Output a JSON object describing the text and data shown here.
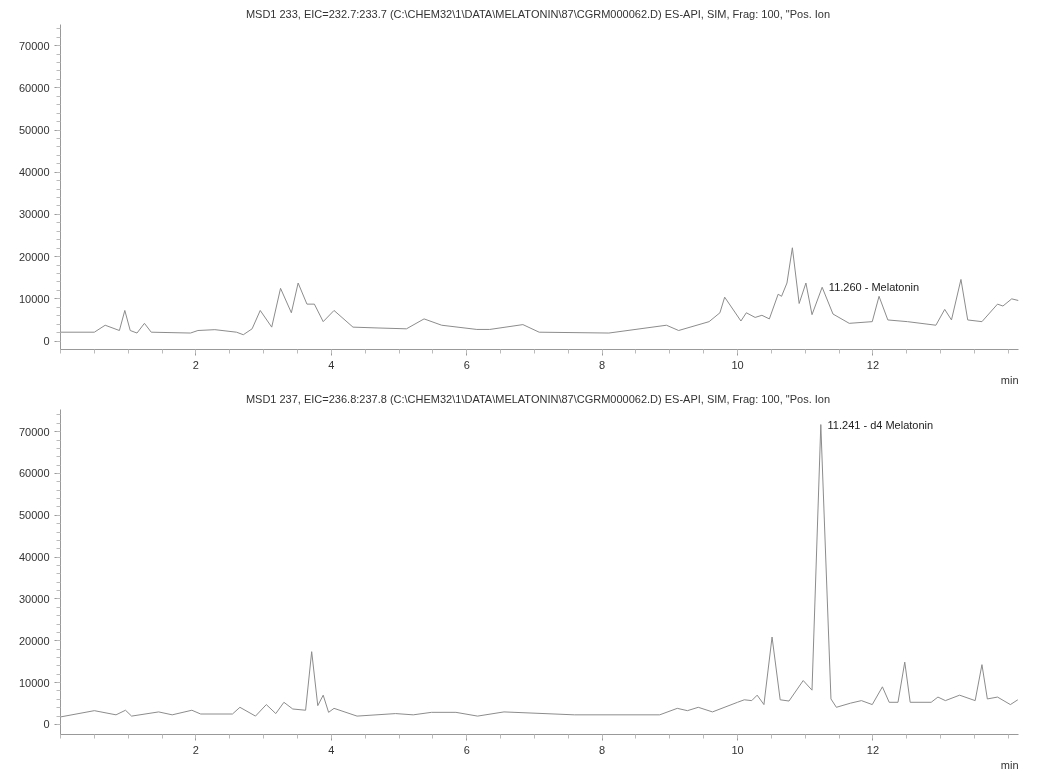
{
  "chart_data": [
    {
      "type": "line",
      "title": "MSD1 233, EIC=232.7:233.7 (C:\\CHEM32\\1\\DATA\\MELATONIN\\87\\CGRM000062.D)  ES-API, SIM, Frag: 100, \"Pos. Ion",
      "xlabel": "min",
      "xlim": [
        0,
        14.15
      ],
      "ylim": [
        -2000,
        75000
      ],
      "xticks": [
        2,
        4,
        6,
        8,
        10,
        12
      ],
      "yticks": [
        0,
        10000,
        20000,
        30000,
        40000,
        50000,
        60000,
        70000
      ],
      "annotations": [
        {
          "text": "11.260 -  Melatonin",
          "x": 11.26,
          "y": 12750
        }
      ],
      "series": [
        {
          "color": "#8c8c8c",
          "x": [
            0,
            0.5,
            0.66,
            0.87,
            0.95,
            1.03,
            1.13,
            1.24,
            1.34,
            1.92,
            2.03,
            2.28,
            2.6,
            2.7,
            2.83,
            2.95,
            3.12,
            3.25,
            3.41,
            3.51,
            3.64,
            3.75,
            3.88,
            4.04,
            4.32,
            4.69,
            5.11,
            5.37,
            5.63,
            6.15,
            6.34,
            6.83,
            7.07,
            8.1,
            8.95,
            9.13,
            9.58,
            9.74,
            9.81,
            10.05,
            10.13,
            10.26,
            10.36,
            10.47,
            10.6,
            10.65,
            10.73,
            10.81,
            10.91,
            11.01,
            11.1,
            11.25,
            11.41,
            11.65,
            11.99,
            12.09,
            12.22,
            12.51,
            12.93,
            13.06,
            13.16,
            13.3,
            13.4,
            13.61,
            13.84,
            13.92,
            14.05,
            14.15
          ],
          "values": [
            2100,
            2100,
            3750,
            2500,
            7250,
            2500,
            1900,
            4200,
            2100,
            1900,
            2500,
            2700,
            2100,
            1500,
            2900,
            7250,
            3300,
            12500,
            6700,
            13750,
            8750,
            8750,
            4600,
            7250,
            3300,
            3100,
            2900,
            5250,
            3750,
            2750,
            2750,
            3900,
            2100,
            1900,
            3750,
            2500,
            4600,
            6700,
            10400,
            4750,
            6700,
            5600,
            6100,
            5250,
            11100,
            10600,
            13750,
            22100,
            8900,
            13750,
            6250,
            12750,
            6400,
            4200,
            4600,
            10600,
            5000,
            4600,
            3750,
            7500,
            5000,
            14600,
            5000,
            4600,
            8750,
            8300,
            10000,
            9600
          ]
        }
      ]
    },
    {
      "type": "line",
      "title": "MSD1 237, EIC=236.8:237.8 (C:\\CHEM32\\1\\DATA\\MELATONIN\\87\\CGRM000062.D)  ES-API, SIM, Frag: 100, \"Pos. Ion",
      "xlabel": "min",
      "xlim": [
        0,
        14.15
      ],
      "ylim": [
        -2400,
        75300
      ],
      "xticks": [
        2,
        4,
        6,
        8,
        10,
        12
      ],
      "yticks": [
        0,
        10000,
        20000,
        30000,
        40000,
        50000,
        60000,
        70000
      ],
      "annotations": [
        {
          "text": "11.241 -  d4 Melatonin",
          "x": 11.241,
          "y": 71700
        }
      ],
      "series": [
        {
          "color": "#8c8c8c",
          "x": [
            0,
            0.5,
            0.82,
            0.96,
            1.05,
            1.45,
            1.65,
            1.94,
            2.07,
            2.54,
            2.65,
            2.88,
            3.04,
            3.18,
            3.3,
            3.43,
            3.62,
            3.71,
            3.8,
            3.88,
            3.96,
            4.04,
            4.38,
            4.95,
            5.21,
            5.48,
            5.84,
            6.16,
            6.55,
            7.59,
            8.85,
            9.11,
            9.26,
            9.42,
            9.63,
            10.0,
            10.1,
            10.21,
            10.29,
            10.39,
            10.51,
            10.63,
            10.76,
            10.97,
            11.1,
            11.23,
            11.38,
            11.46,
            11.67,
            11.83,
            11.99,
            12.14,
            12.24,
            12.37,
            12.47,
            12.55,
            12.86,
            12.96,
            13.07,
            13.28,
            13.51,
            13.61,
            13.69,
            13.84,
            14.03,
            14.14
          ],
          "values": [
            1800,
            3300,
            2300,
            3400,
            2000,
            3000,
            2300,
            3400,
            2500,
            2500,
            4100,
            2000,
            4750,
            2600,
            5300,
            3700,
            3400,
            17400,
            4500,
            7000,
            2900,
            3850,
            2000,
            2600,
            2300,
            2900,
            2900,
            2000,
            3000,
            2300,
            2300,
            3850,
            3300,
            4100,
            3000,
            5300,
            5900,
            5700,
            7000,
            4750,
            20900,
            5900,
            5600,
            10500,
            8200,
            71700,
            6100,
            4100,
            5100,
            5700,
            4750,
            9000,
            5300,
            5300,
            14900,
            5300,
            5300,
            6550,
            5700,
            7000,
            5700,
            14300,
            6100,
            6550,
            4750,
            5900
          ]
        }
      ]
    }
  ]
}
